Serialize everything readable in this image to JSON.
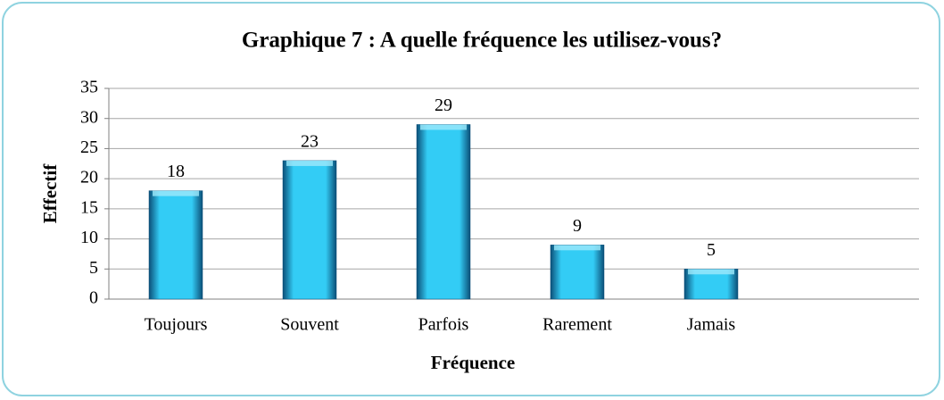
{
  "chart_data": {
    "type": "bar",
    "title": "Graphique 7 : A quelle fréquence les utilisez-vous?",
    "x_label": "Fréquence",
    "y_label": "Effectif",
    "categories": [
      "Toujours",
      "Souvent",
      "Parfois",
      "Rarement",
      "Jamais",
      null
    ],
    "values": [
      18,
      23,
      29,
      9,
      5,
      null
    ],
    "color": "#33ccf5",
    "ylim": [
      0,
      35
    ],
    "yticks": [
      0,
      5,
      10,
      15,
      20,
      25,
      30,
      35
    ],
    "grid": true
  }
}
